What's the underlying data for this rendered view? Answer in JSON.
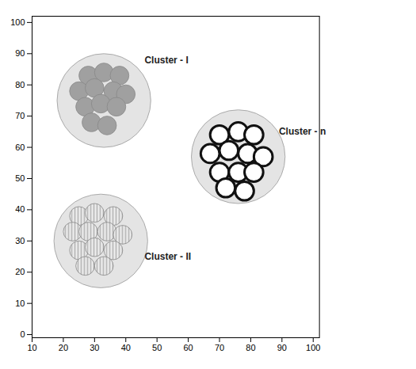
{
  "chart_data": {
    "type": "scatter",
    "xlim": [
      10,
      102
    ],
    "ylim": [
      -1,
      102
    ],
    "xticks": [
      10,
      20,
      30,
      40,
      50,
      60,
      70,
      80,
      90,
      100
    ],
    "yticks": [
      0,
      10,
      20,
      30,
      40,
      50,
      60,
      70,
      80,
      90,
      100
    ],
    "series": [
      {
        "name": "Cluster - I",
        "name_pos": [
          46,
          88
        ],
        "color": "#a0a0a0",
        "marker": "circle",
        "center": [
          33,
          75
        ],
        "radius": 15,
        "x": [
          28,
          33,
          38,
          25,
          30,
          36,
          40,
          27,
          32,
          37,
          29,
          34
        ],
        "y": [
          83,
          84,
          83,
          78,
          79,
          78,
          77,
          73,
          74,
          73,
          68,
          67
        ]
      },
      {
        "name": "Cluster - II",
        "name_pos": [
          46,
          25
        ],
        "color": "#f0f0f0",
        "marker": "hatched",
        "center": [
          32,
          30
        ],
        "radius": 15,
        "x": [
          25,
          30,
          36,
          23,
          28,
          34,
          39,
          25,
          30,
          36,
          27,
          33
        ],
        "y": [
          38,
          39,
          38,
          33,
          33,
          33,
          32,
          27,
          28,
          27,
          22,
          22
        ]
      },
      {
        "name": "Cluster - n",
        "name_pos": [
          89,
          65
        ],
        "color": "#ffffff",
        "marker": "ring",
        "center": [
          76,
          57
        ],
        "radius": 15,
        "x": [
          70,
          76,
          81,
          67,
          73,
          79,
          84,
          70,
          76,
          81,
          72,
          78
        ],
        "y": [
          64,
          65,
          64,
          58,
          59,
          58,
          57,
          52,
          52,
          52,
          47,
          46
        ]
      }
    ]
  }
}
